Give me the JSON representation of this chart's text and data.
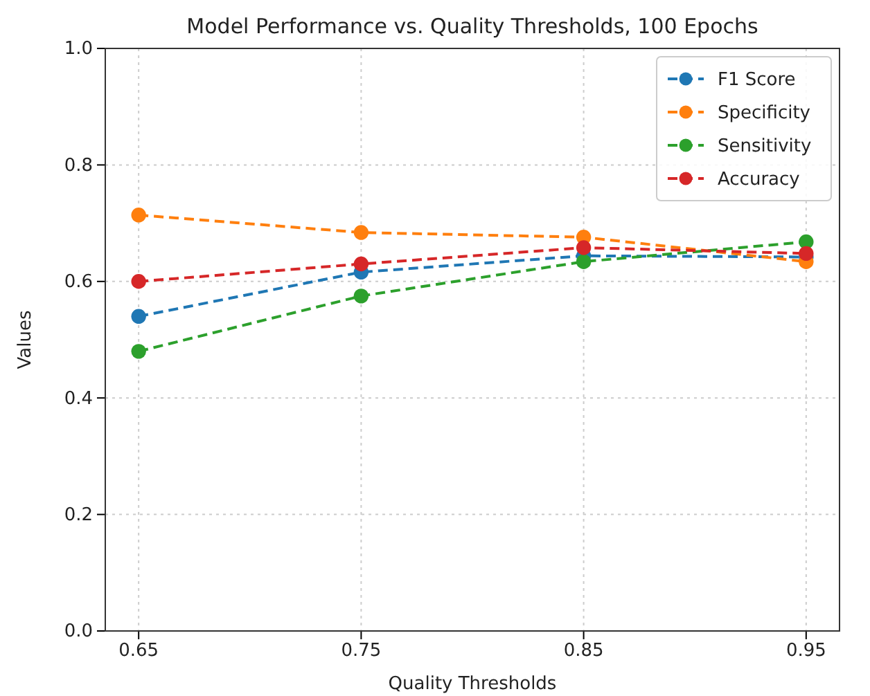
{
  "chart_data": {
    "type": "line",
    "title": "Model Performance vs. Quality Thresholds, 100 Epochs",
    "xlabel": "Quality Thresholds",
    "ylabel": "Values",
    "x": [
      0.65,
      0.75,
      0.85,
      0.95
    ],
    "xlim": [
      0.635,
      0.965
    ],
    "xticks": [
      0.65,
      0.75,
      0.85,
      0.95
    ],
    "ylim": [
      0,
      1
    ],
    "yticks": [
      {
        "value": 0,
        "label": "0.0"
      },
      {
        "value": 0.2,
        "label": "0.2"
      },
      {
        "value": 0.4,
        "label": "0.4"
      },
      {
        "value": 0.6,
        "label": "0.6"
      },
      {
        "value": 0.8,
        "label": "0.8"
      },
      {
        "value": 1,
        "label": "1.0"
      }
    ],
    "grid": true,
    "legend": "top right",
    "marker": "circle",
    "line_style": "dashed",
    "series": [
      {
        "name": "F1 Score",
        "color": "#1f77b4",
        "values": [
          0.54,
          0.616,
          0.644,
          0.642
        ]
      },
      {
        "name": "Specificity",
        "color": "#ff7f0e",
        "values": [
          0.714,
          0.684,
          0.676,
          0.634
        ]
      },
      {
        "name": "Sensitivity",
        "color": "#2ca02c",
        "values": [
          0.48,
          0.575,
          0.634,
          0.668
        ]
      },
      {
        "name": "Accuracy",
        "color": "#d62728",
        "values": [
          0.6,
          0.63,
          0.658,
          0.648
        ]
      }
    ]
  }
}
